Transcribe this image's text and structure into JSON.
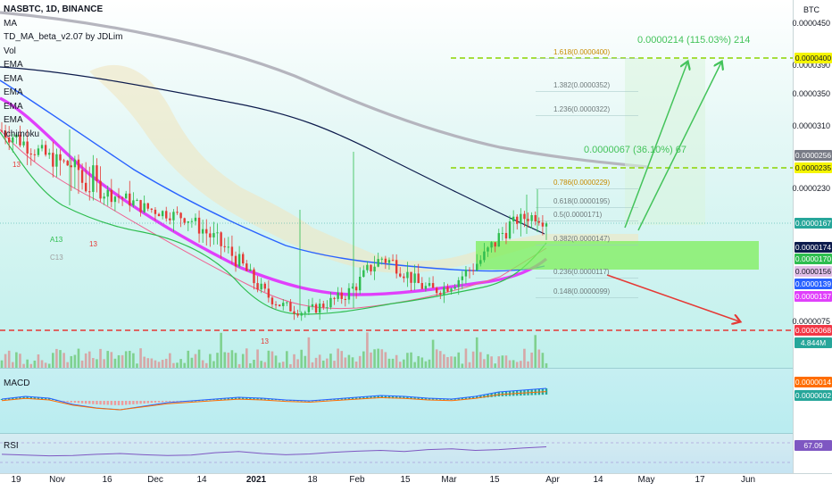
{
  "legend": {
    "symbol": "NASBTC, 1D, BINANCE",
    "items": [
      "MA",
      "TD_MA_beta_v2.07 by JDLim",
      "Vol",
      "EMA",
      "EMA",
      "EMA",
      "EMA",
      "EMA",
      "Ichimoku"
    ]
  },
  "axis_title": "BTC",
  "panes": {
    "macd": "MACD",
    "rsi": "RSI"
  },
  "annotations": {
    "target_big": "0.0000214 (115.03%) 214",
    "target_small": "0.0000067 (36.10%) 67",
    "td_marks": [
      "13",
      "13",
      "13",
      "A13",
      "C13"
    ]
  },
  "fib_levels": [
    {
      "label": "1.618(0.0000400)",
      "value": 4e-05
    },
    {
      "label": "1.382(0.0000352)",
      "value": 3.52e-05
    },
    {
      "label": "1.236(0.0000322)",
      "value": 3.22e-05
    },
    {
      "label": "0.786(0.0000229)",
      "value": 2.29e-05
    },
    {
      "label": "0.618(0.0000195)",
      "value": 1.95e-05
    },
    {
      "label": "0.5(0.0000171)",
      "value": 1.71e-05
    },
    {
      "label": "0.382(0.0000147)",
      "value": 1.47e-05
    },
    {
      "label": "0.236(0.0000117)",
      "value": 1.17e-05
    },
    {
      "label": "0.148(0.0000099)",
      "value": 9.9e-06
    }
  ],
  "price_axis": {
    "ticks": [
      "0.0000450",
      "0.0000390",
      "0.0000350",
      "0.0000310",
      "0.0000230",
      "0.0000075"
    ],
    "tags": [
      {
        "text": "0.0000400",
        "bg": "#f5f500",
        "fg": "#131722"
      },
      {
        "text": "0.0000256",
        "bg": "#787b86",
        "fg": "#ffffff"
      },
      {
        "text": "0.0000235",
        "bg": "#f5f500",
        "fg": "#131722"
      },
      {
        "text": "0.0000167",
        "bg": "#26a69a",
        "fg": "#ffffff"
      },
      {
        "text": "0.0000174",
        "bg": "#0d1b4c",
        "fg": "#ffffff"
      },
      {
        "text": "0.0000170",
        "bg": "#2ebd4f",
        "fg": "#ffffff"
      },
      {
        "text": "0.0000156",
        "bg": "#e1bee7",
        "fg": "#131722"
      },
      {
        "text": "0.0000139",
        "bg": "#2962ff",
        "fg": "#ffffff"
      },
      {
        "text": "0.0000137",
        "bg": "#e040fb",
        "fg": "#ffffff"
      },
      {
        "text": "0.0000068",
        "bg": "#f23645",
        "fg": "#ffffff"
      },
      {
        "text": "4.844M",
        "bg": "#26a69a",
        "fg": "#ffffff"
      }
    ],
    "macd_tags": [
      {
        "text": "0.0000014",
        "bg": "#ff6d00"
      },
      {
        "text": "0.0000002",
        "bg": "#26a69a"
      }
    ],
    "rsi_tag": {
      "text": "67.09",
      "bg": "#7e57c2"
    }
  },
  "chart_data": {
    "type": "line",
    "title": "NASBTC, 1D, BINANCE",
    "x_ticks": [
      "19",
      "Nov",
      "16",
      "Dec",
      "14",
      "2021",
      "18",
      "Feb",
      "15",
      "Mar",
      "15",
      "Apr",
      "14",
      "May",
      "17",
      "Jun"
    ],
    "price_series": [
      3e-05,
      2.9e-05,
      2.75e-05,
      2.62e-05,
      2.5e-05,
      2.42e-05,
      2.35e-05,
      2.28e-05,
      2.22e-05,
      2.15e-05,
      2.08e-05,
      1.96e-05,
      1.9e-05,
      1.84e-05,
      1.8e-05,
      1.72e-05,
      1.6e-05,
      1.5e-05,
      1.4e-05,
      1.28e-05,
      1.12e-05,
      1e-05,
      9.2e-06,
      8.8e-06,
      8.5e-06,
      9e-06,
      9.5e-06,
      1e-05,
      1.1e-05,
      1.25e-05,
      1.35e-05,
      1.3e-05,
      1.2e-05,
      1.1e-05,
      1.05e-05,
      1.08e-05,
      1.15e-05,
      1.25e-05,
      1.35e-05,
      1.5e-05,
      1.65e-05,
      1.75e-05,
      1.8e-05,
      1.72e-05
    ],
    "macd_series": [
      0.2,
      0.5,
      0.3,
      -0.4,
      -0.8,
      -1.0,
      -0.6,
      -0.2,
      0.0,
      0.2,
      0.4,
      0.3,
      0.1,
      0.0,
      0.2,
      0.4,
      0.6,
      0.5,
      0.3,
      0.2,
      0.5,
      1.0,
      1.2,
      1.4
    ],
    "rsi_series": [
      48,
      46,
      44,
      45,
      48,
      50,
      47,
      45,
      46,
      52,
      55,
      50,
      47,
      49,
      53,
      56,
      58,
      55,
      60,
      62,
      58,
      60,
      64,
      67
    ],
    "current_price": 1.67e-05
  }
}
